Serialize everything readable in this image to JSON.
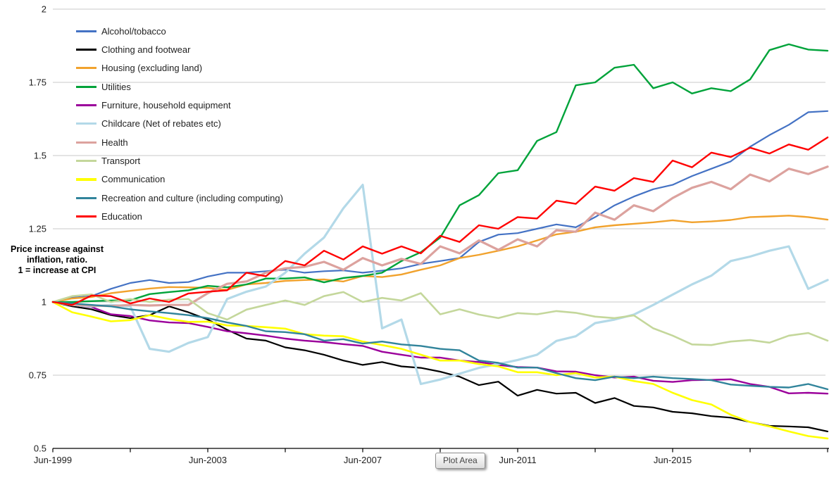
{
  "tooltip": {
    "label": "Plot Area"
  },
  "chart_data": {
    "type": "line",
    "title": "",
    "note_lines": [
      "Price increase against",
      "inflation, ratio.",
      "1 = increase at CPI"
    ],
    "grid": "horizontal-only",
    "legend_position": "top-left-inside",
    "y_axis": {
      "ylim": [
        0.5,
        2.0
      ],
      "ticks": [
        2,
        1.75,
        1.5,
        1.25,
        1,
        0.75,
        0.5
      ],
      "tick_labels": [
        "2",
        "1.75",
        "1.5",
        "1.25",
        "1",
        "0.75",
        "0.5"
      ]
    },
    "x_axis": {
      "description": "Time, quarterly series from Jun-1999; values below sampled every 0.5 years",
      "sample_step_years": 0.5,
      "total_years": 20,
      "tick_every_years": 2,
      "label_every_years": 4,
      "tick_labels": [
        "Jun-1999",
        "Jun-2003",
        "Jun-2007",
        "Jun-2011",
        "Jun-2015"
      ]
    },
    "series": [
      {
        "name": "Alcohol/tobacco",
        "color": "#4472C4",
        "width": 2.2,
        "values": [
          1.0,
          1.015,
          1.02,
          1.045,
          1.065,
          1.075,
          1.065,
          1.068,
          1.087,
          1.1,
          1.1,
          1.105,
          1.11,
          1.1,
          1.105,
          1.108,
          1.1,
          1.107,
          1.115,
          1.13,
          1.14,
          1.15,
          1.205,
          1.23,
          1.235,
          1.25,
          1.265,
          1.255,
          1.29,
          1.33,
          1.36,
          1.385,
          1.4,
          1.43,
          1.455,
          1.48,
          1.53,
          1.57,
          1.605,
          1.648,
          1.652
        ]
      },
      {
        "name": "Clothing and footwear",
        "color": "#000000",
        "width": 2.2,
        "values": [
          1.0,
          0.985,
          0.975,
          0.955,
          0.945,
          0.955,
          0.985,
          0.965,
          0.94,
          0.905,
          0.875,
          0.868,
          0.845,
          0.835,
          0.82,
          0.8,
          0.785,
          0.795,
          0.78,
          0.775,
          0.762,
          0.745,
          0.716,
          0.728,
          0.68,
          0.7,
          0.687,
          0.69,
          0.655,
          0.672,
          0.645,
          0.64,
          0.625,
          0.62,
          0.61,
          0.605,
          0.59,
          0.577,
          0.575,
          0.572,
          0.558
        ]
      },
      {
        "name": "Housing (excluding land)",
        "color": "#F1A22D",
        "width": 2.4,
        "values": [
          1.0,
          1.012,
          1.017,
          1.03,
          1.038,
          1.046,
          1.051,
          1.05,
          1.048,
          1.041,
          1.06,
          1.065,
          1.072,
          1.075,
          1.077,
          1.07,
          1.089,
          1.085,
          1.094,
          1.11,
          1.125,
          1.15,
          1.161,
          1.175,
          1.19,
          1.21,
          1.231,
          1.24,
          1.255,
          1.262,
          1.267,
          1.272,
          1.279,
          1.272,
          1.275,
          1.28,
          1.29,
          1.292,
          1.295,
          1.29,
          1.281
        ]
      },
      {
        "name": "Utilities",
        "color": "#00A33A",
        "width": 2.4,
        "values": [
          1.0,
          1.0,
          1.003,
          1.005,
          1.006,
          1.027,
          1.034,
          1.04,
          1.055,
          1.05,
          1.06,
          1.08,
          1.08,
          1.084,
          1.067,
          1.082,
          1.089,
          1.1,
          1.14,
          1.17,
          1.22,
          1.33,
          1.365,
          1.44,
          1.45,
          1.55,
          1.58,
          1.74,
          1.75,
          1.8,
          1.81,
          1.73,
          1.75,
          1.712,
          1.73,
          1.72,
          1.76,
          1.86,
          1.88,
          1.862,
          1.858
        ]
      },
      {
        "name": "Furniture, household equipment",
        "color": "#9B009B",
        "width": 2.4,
        "values": [
          1.0,
          0.99,
          0.983,
          0.958,
          0.952,
          0.937,
          0.93,
          0.928,
          0.915,
          0.9,
          0.893,
          0.885,
          0.875,
          0.868,
          0.863,
          0.856,
          0.85,
          0.83,
          0.82,
          0.81,
          0.81,
          0.8,
          0.795,
          0.785,
          0.778,
          0.776,
          0.763,
          0.762,
          0.75,
          0.742,
          0.745,
          0.731,
          0.727,
          0.733,
          0.734,
          0.736,
          0.72,
          0.71,
          0.688,
          0.69,
          0.687
        ]
      },
      {
        "name": "Childcare (Net of rebates etc)",
        "color": "#B3D9E8",
        "width": 3.2,
        "values": [
          1.0,
          0.99,
          0.985,
          0.99,
          0.985,
          0.84,
          0.83,
          0.86,
          0.88,
          1.01,
          1.035,
          1.053,
          1.1,
          1.165,
          1.22,
          1.32,
          1.4,
          0.91,
          0.94,
          0.72,
          0.735,
          0.755,
          0.775,
          0.788,
          0.802,
          0.82,
          0.867,
          0.883,
          0.928,
          0.94,
          0.957,
          0.99,
          1.025,
          1.06,
          1.09,
          1.14,
          1.155,
          1.175,
          1.19,
          1.045,
          1.075
        ]
      },
      {
        "name": "Health",
        "color": "#DCA29E",
        "width": 3.2,
        "values": [
          1.0,
          0.99,
          0.988,
          0.986,
          0.99,
          0.988,
          0.99,
          0.99,
          1.03,
          1.062,
          1.07,
          1.1,
          1.115,
          1.12,
          1.137,
          1.11,
          1.15,
          1.125,
          1.147,
          1.13,
          1.19,
          1.166,
          1.21,
          1.178,
          1.214,
          1.19,
          1.245,
          1.24,
          1.305,
          1.281,
          1.33,
          1.31,
          1.355,
          1.39,
          1.41,
          1.385,
          1.435,
          1.412,
          1.455,
          1.437,
          1.462
        ]
      },
      {
        "name": "Transport",
        "color": "#C4D79B",
        "width": 2.6,
        "values": [
          1.0,
          1.02,
          1.026,
          1.0,
          1.01,
          1.0,
          1.008,
          1.01,
          0.962,
          0.94,
          0.974,
          0.99,
          1.005,
          0.99,
          1.02,
          1.034,
          1.0,
          1.014,
          1.005,
          1.03,
          0.958,
          0.975,
          0.957,
          0.945,
          0.962,
          0.958,
          0.969,
          0.963,
          0.95,
          0.945,
          0.954,
          0.91,
          0.885,
          0.855,
          0.853,
          0.865,
          0.87,
          0.861,
          0.885,
          0.894,
          0.868
        ]
      },
      {
        "name": "Communication",
        "color": "#FFFF00",
        "width": 2.6,
        "values": [
          1.0,
          0.965,
          0.95,
          0.934,
          0.938,
          0.955,
          0.942,
          0.932,
          0.933,
          0.92,
          0.918,
          0.914,
          0.909,
          0.89,
          0.885,
          0.883,
          0.865,
          0.853,
          0.84,
          0.82,
          0.8,
          0.8,
          0.788,
          0.78,
          0.76,
          0.76,
          0.75,
          0.757,
          0.742,
          0.745,
          0.73,
          0.72,
          0.69,
          0.665,
          0.65,
          0.615,
          0.59,
          0.575,
          0.558,
          0.542,
          0.534
        ]
      },
      {
        "name": "Recreation and culture (including computing)",
        "color": "#31849B",
        "width": 2.4,
        "values": [
          1.0,
          0.995,
          0.99,
          0.985,
          0.975,
          0.968,
          0.962,
          0.955,
          0.945,
          0.93,
          0.918,
          0.9,
          0.897,
          0.89,
          0.868,
          0.873,
          0.858,
          0.865,
          0.855,
          0.85,
          0.84,
          0.835,
          0.8,
          0.792,
          0.776,
          0.776,
          0.757,
          0.74,
          0.733,
          0.745,
          0.74,
          0.745,
          0.74,
          0.737,
          0.733,
          0.718,
          0.714,
          0.71,
          0.708,
          0.72,
          0.702
        ]
      },
      {
        "name": "Education",
        "color": "#FF0000",
        "width": 2.4,
        "values": [
          1.0,
          0.99,
          1.022,
          1.02,
          0.995,
          1.012,
          1.0,
          1.029,
          1.035,
          1.04,
          1.1,
          1.088,
          1.14,
          1.125,
          1.175,
          1.145,
          1.19,
          1.165,
          1.19,
          1.166,
          1.226,
          1.205,
          1.262,
          1.25,
          1.29,
          1.285,
          1.346,
          1.335,
          1.394,
          1.38,
          1.423,
          1.41,
          1.483,
          1.46,
          1.51,
          1.495,
          1.527,
          1.507,
          1.538,
          1.52,
          1.562
        ]
      }
    ]
  }
}
